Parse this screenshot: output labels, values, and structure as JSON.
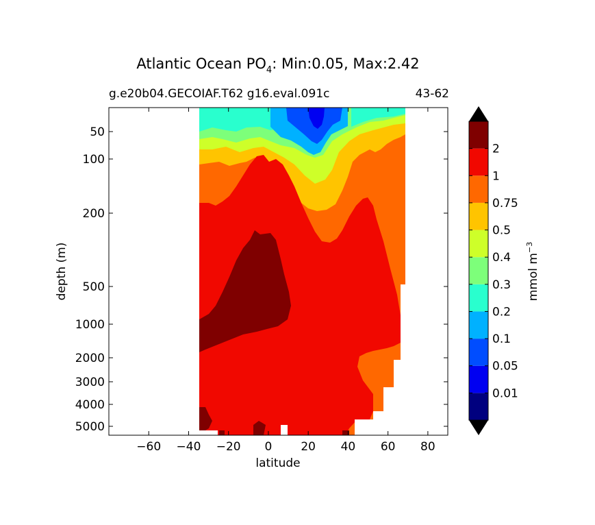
{
  "chart_data": {
    "type": "contour",
    "title": {
      "prefix": "Atlantic Ocean PO",
      "subscript": "4",
      "suffix": ": Min:0.05, Max:2.42"
    },
    "subtitle_left": "g.e20b04.GECOIAF.T62 g16.eval.091c",
    "subtitle_right": "43-62",
    "xlabel": "latitude",
    "ylabel": "depth (m)",
    "x_ticks": [
      -60,
      -40,
      -20,
      0,
      20,
      40,
      60,
      80
    ],
    "x_range": [
      -80,
      90
    ],
    "y_ticks": [
      50,
      100,
      200,
      500,
      1000,
      2000,
      3000,
      4000,
      5000
    ],
    "y_range": [
      0,
      5400
    ],
    "y_scale": "nonlinear depth (stretched near surface)",
    "data_lat_range": [
      -34,
      68
    ],
    "colorbar": {
      "label_main": "mmol m",
      "label_exp": "−3",
      "levels": [
        0.01,
        0.05,
        0.1,
        0.2,
        0.3,
        0.4,
        0.5,
        0.75,
        1,
        2
      ],
      "colors": [
        "#00007f",
        "#0000f1",
        "#004dff",
        "#00b1ff",
        "#29ffce",
        "#7dff7a",
        "#ceff29",
        "#ffc400",
        "#ff6800",
        "#f10800",
        "#7f0000"
      ],
      "extend": "both",
      "extend_low_color": "#000000",
      "extend_high_color": "#000000"
    }
  }
}
